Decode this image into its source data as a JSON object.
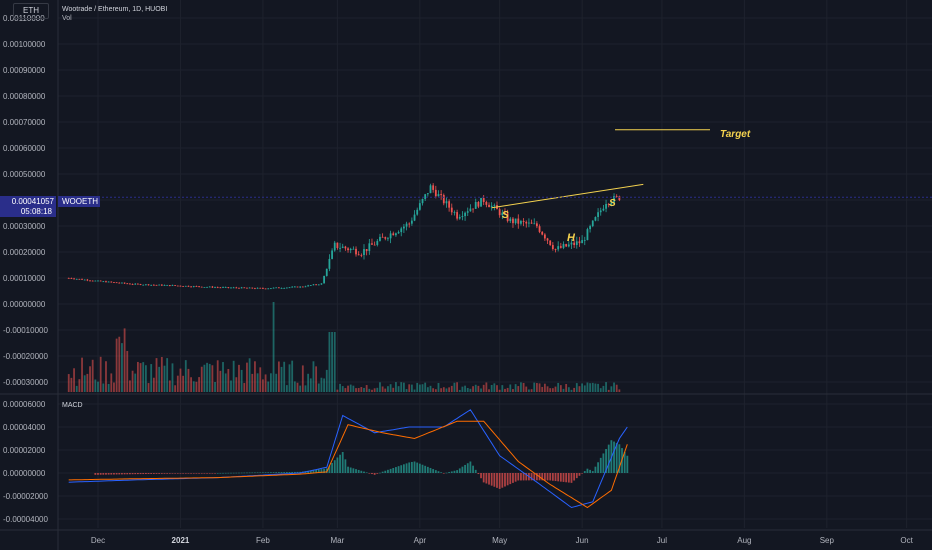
{
  "header": {
    "symbol": "ETH",
    "title": "Wootrade / Ethereum, 1D, HUOBI",
    "volume_label": "Vol",
    "macd_label": "MACD"
  },
  "price_tag": {
    "value": "0.00041057",
    "symbol": "WOOETH",
    "countdown": "05:08:18"
  },
  "annotations": {
    "target": "Target",
    "left_shoulder": "S",
    "head": "H",
    "right_shoulder": "S"
  },
  "colors": {
    "background": "#131722",
    "up": "#26a69a",
    "down": "#ef5350",
    "annotation": "#f5d34f",
    "macd_line": "#2962ff",
    "signal_line": "#ff6d00",
    "tag": "#2a2e8a"
  },
  "chart_data": [
    {
      "type": "candlestick",
      "title": "Wootrade / Ethereum, 1D, HUOBI",
      "yaxis_ticks": [
        "0.00110000",
        "0.00100000",
        "0.00090000",
        "0.00080000",
        "0.00070000",
        "0.00060000",
        "0.00050000",
        "0.00040000",
        "0.00030000",
        "0.00020000",
        "0.00010000",
        "0.00000000",
        "-0.00010000",
        "-0.00020000",
        "-0.00030000"
      ],
      "xaxis_ticks": [
        "Dec",
        "2021",
        "Feb",
        "Mar",
        "Apr",
        "May",
        "Jun",
        "Jul",
        "Aug",
        "Sep",
        "Oct"
      ],
      "ylim": [
        -0.00033,
        0.00113
      ],
      "close_approx": [
        [
          "Nov 20",
          0.0001
        ],
        [
          "Dec 1",
          8.8e-05
        ],
        [
          "Dec 15",
          7.6e-05
        ],
        [
          "Jan 1",
          7e-05
        ],
        [
          "Jan 15",
          6.4e-05
        ],
        [
          "Feb 1",
          6e-05
        ],
        [
          "Feb 15",
          6.6e-05
        ],
        [
          "Feb 23",
          7.8e-05
        ],
        [
          "Feb 28",
          0.000225
        ],
        [
          "Mar 10",
          0.0002
        ],
        [
          "Mar 20",
          0.000265
        ],
        [
          "Mar 28",
          0.00031
        ],
        [
          "Apr 5",
          0.00045
        ],
        [
          "Apr 15",
          0.00034
        ],
        [
          "Apr 25",
          0.0004
        ],
        [
          "May 5",
          0.00032
        ],
        [
          "May 15",
          0.0003
        ],
        [
          "May 22",
          0.00021
        ],
        [
          "Jun 1",
          0.00024
        ],
        [
          "Jun 10",
          0.000395
        ],
        [
          "Jun 15",
          0.00041
        ]
      ],
      "current_price": 0.00041057,
      "neckline": [
        [
          "Apr 28",
          0.00037
        ],
        [
          "Jun 24",
          0.00046
        ]
      ],
      "target_level": 0.00067
    },
    {
      "type": "bar",
      "title": "Vol",
      "description": "volume histogram with a spike in early February",
      "peaks": [
        [
          "Dec 10",
          "high"
        ],
        [
          "Feb 5",
          "spike"
        ],
        [
          "Feb 27",
          "high"
        ]
      ]
    },
    {
      "type": "line",
      "title": "MACD",
      "yaxis_ticks": [
        "0.00006000",
        "0.00004000",
        "0.00002000",
        "0.00000000",
        "-0.00002000",
        "-0.00004000"
      ],
      "ylim": [
        -4.5e-05,
        6.2e-05
      ],
      "series": [
        {
          "name": "MACD",
          "values": [
            [
              "Nov 20",
              -8e-06
            ],
            [
              "Dec 15",
              -6e-06
            ],
            [
              "Jan 15",
              -4e-06
            ],
            [
              "Feb 15",
              0.0
            ],
            [
              "Feb 25",
              5e-06
            ],
            [
              "Mar 3",
              5e-05
            ],
            [
              "Mar 15",
              3.5e-05
            ],
            [
              "Mar 28",
              4e-05
            ],
            [
              "Apr 10",
              4e-05
            ],
            [
              "Apr 20",
              5.5e-05
            ],
            [
              "May 1",
              1.5e-05
            ],
            [
              "May 15",
              -8e-06
            ],
            [
              "May 28",
              -3e-05
            ],
            [
              "Jun 5",
              -2.5e-05
            ],
            [
              "Jun 15",
              3e-05
            ],
            [
              "Jun 18",
              4e-05
            ]
          ]
        },
        {
          "name": "Signal",
          "values": [
            [
              "Nov 20",
              -6e-06
            ],
            [
              "Dec 15",
              -5e-06
            ],
            [
              "Jan 15",
              -4e-06
            ],
            [
              "Feb 15",
              -1e-06
            ],
            [
              "Feb 25",
              1e-06
            ],
            [
              "Mar 5",
              4.2e-05
            ],
            [
              "Mar 18",
              3.5e-05
            ],
            [
              "Mar 30",
              3e-05
            ],
            [
              "Apr 15",
              4.5e-05
            ],
            [
              "Apr 25",
              4.5e-05
            ],
            [
              "May 8",
              1e-05
            ],
            [
              "May 20",
              -1e-05
            ],
            [
              "Jun 3",
              -3e-05
            ],
            [
              "Jun 12",
              -1.5e-05
            ],
            [
              "Jun 18",
              2.5e-05
            ]
          ]
        }
      ]
    }
  ]
}
